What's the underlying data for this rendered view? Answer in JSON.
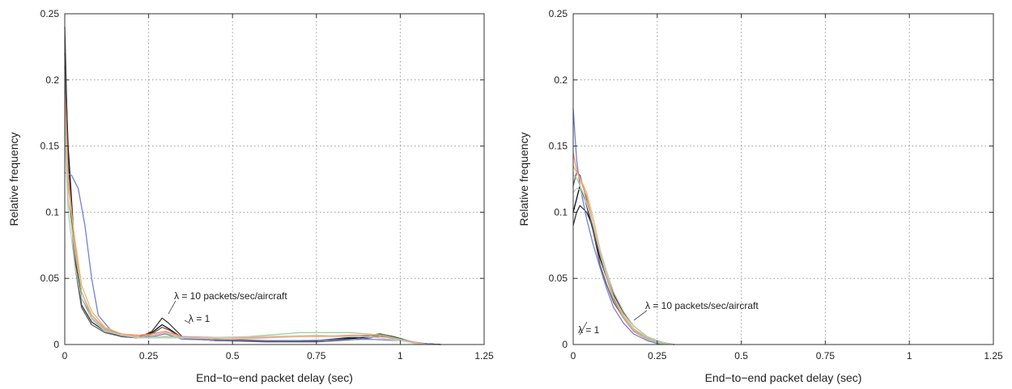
{
  "chart_data": [
    {
      "type": "line",
      "xlabel": "End−to−end packet delay (sec)",
      "ylabel": "Relative frequency",
      "xlim": [
        0,
        1.25
      ],
      "ylim": [
        0,
        0.25
      ],
      "xticks": [
        0,
        0.25,
        0.5,
        0.75,
        1,
        1.25
      ],
      "xtick_labels": [
        "0",
        "0.25",
        "0.5",
        "0.75",
        "1",
        "1.25"
      ],
      "yticks": [
        0,
        0.05,
        0.1,
        0.15,
        0.2,
        0.25
      ],
      "ytick_labels": [
        "0",
        "0.05",
        "0.1",
        "0.15",
        "0.2",
        "0.25"
      ],
      "grid": true,
      "annotations": [
        {
          "text": "λ = 10 packets/sec/aircraft",
          "x": 0.3,
          "y": 0.018
        },
        {
          "text": "λ = 1",
          "x": 0.3,
          "y": 0.012
        }
      ],
      "series": [
        {
          "color": "#0a0a0a",
          "values": [
            [
              0,
              0.22
            ],
            [
              0.01,
              0.15
            ],
            [
              0.03,
              0.07
            ],
            [
              0.05,
              0.035
            ],
            [
              0.08,
              0.02
            ],
            [
              0.12,
              0.011
            ],
            [
              0.17,
              0.007
            ],
            [
              0.22,
              0.006
            ],
            [
              0.26,
              0.009
            ],
            [
              0.29,
              0.015
            ],
            [
              0.31,
              0.012
            ],
            [
              0.35,
              0.005
            ],
            [
              0.45,
              0.003
            ],
            [
              0.6,
              0.0025
            ],
            [
              0.75,
              0.003
            ],
            [
              0.88,
              0.005
            ],
            [
              0.94,
              0.007
            ],
            [
              0.98,
              0.005
            ],
            [
              1.05,
              0.001
            ],
            [
              1.12,
              0
            ]
          ]
        },
        {
          "color": "#3a3a3a",
          "values": [
            [
              0,
              0.24
            ],
            [
              0.01,
              0.14
            ],
            [
              0.03,
              0.065
            ],
            [
              0.05,
              0.03
            ],
            [
              0.08,
              0.017
            ],
            [
              0.12,
              0.01
            ],
            [
              0.17,
              0.006
            ],
            [
              0.22,
              0.005
            ],
            [
              0.26,
              0.01
            ],
            [
              0.29,
              0.02
            ],
            [
              0.31,
              0.016
            ],
            [
              0.35,
              0.006
            ],
            [
              0.45,
              0.004
            ],
            [
              0.6,
              0.003
            ],
            [
              0.75,
              0.003
            ],
            [
              0.88,
              0.006
            ],
            [
              0.94,
              0.008
            ],
            [
              0.98,
              0.006
            ],
            [
              1.05,
              0.001
            ],
            [
              1.12,
              0
            ]
          ]
        },
        {
          "color": "#5c5c5c",
          "values": [
            [
              0,
              0.21
            ],
            [
              0.01,
              0.13
            ],
            [
              0.03,
              0.06
            ],
            [
              0.05,
              0.028
            ],
            [
              0.08,
              0.015
            ],
            [
              0.12,
              0.009
            ],
            [
              0.17,
              0.006
            ],
            [
              0.22,
              0.005
            ],
            [
              0.26,
              0.008
            ],
            [
              0.29,
              0.013
            ],
            [
              0.31,
              0.011
            ],
            [
              0.35,
              0.005
            ],
            [
              0.45,
              0.003
            ],
            [
              0.6,
              0.002
            ],
            [
              0.75,
              0.002
            ],
            [
              0.88,
              0.004
            ],
            [
              0.94,
              0.006
            ],
            [
              0.98,
              0.005
            ],
            [
              1.05,
              0.001
            ],
            [
              1.12,
              0
            ]
          ]
        },
        {
          "color": "#6f7fe0",
          "values": [
            [
              0,
              0.13
            ],
            [
              0.02,
              0.128
            ],
            [
              0.04,
              0.118
            ],
            [
              0.06,
              0.09
            ],
            [
              0.08,
              0.05
            ],
            [
              0.1,
              0.022
            ],
            [
              0.14,
              0.01
            ],
            [
              0.2,
              0.006
            ],
            [
              0.26,
              0.006
            ],
            [
              0.3,
              0.008
            ],
            [
              0.35,
              0.004
            ],
            [
              0.5,
              0.003
            ],
            [
              0.7,
              0.003
            ],
            [
              0.9,
              0.004
            ],
            [
              1.0,
              0.003
            ],
            [
              1.1,
              0
            ]
          ]
        },
        {
          "color": "#f08a7a",
          "values": [
            [
              0,
              0.19
            ],
            [
              0.01,
              0.13
            ],
            [
              0.03,
              0.075
            ],
            [
              0.05,
              0.04
            ],
            [
              0.08,
              0.022
            ],
            [
              0.12,
              0.012
            ],
            [
              0.17,
              0.008
            ],
            [
              0.22,
              0.007
            ],
            [
              0.26,
              0.008
            ],
            [
              0.3,
              0.01
            ],
            [
              0.35,
              0.006
            ],
            [
              0.5,
              0.005
            ],
            [
              0.7,
              0.006
            ],
            [
              0.85,
              0.007
            ],
            [
              0.95,
              0.007
            ],
            [
              1.0,
              0.004
            ],
            [
              1.08,
              0
            ]
          ]
        },
        {
          "color": "#f6b36a",
          "values": [
            [
              0,
              0.18
            ],
            [
              0.01,
              0.12
            ],
            [
              0.03,
              0.08
            ],
            [
              0.05,
              0.045
            ],
            [
              0.08,
              0.025
            ],
            [
              0.12,
              0.013
            ],
            [
              0.17,
              0.008
            ],
            [
              0.22,
              0.006
            ],
            [
              0.26,
              0.007
            ],
            [
              0.3,
              0.009
            ],
            [
              0.35,
              0.005
            ],
            [
              0.5,
              0.004
            ],
            [
              0.7,
              0.006
            ],
            [
              0.85,
              0.006
            ],
            [
              0.95,
              0.006
            ],
            [
              1.0,
              0.003
            ],
            [
              1.08,
              0
            ]
          ]
        },
        {
          "color": "#9fd39a",
          "values": [
            [
              0,
              0.17
            ],
            [
              0.01,
              0.11
            ],
            [
              0.03,
              0.07
            ],
            [
              0.05,
              0.04
            ],
            [
              0.08,
              0.02
            ],
            [
              0.12,
              0.011
            ],
            [
              0.17,
              0.007
            ],
            [
              0.22,
              0.005
            ],
            [
              0.3,
              0.006
            ],
            [
              0.4,
              0.005
            ],
            [
              0.55,
              0.006
            ],
            [
              0.7,
              0.009
            ],
            [
              0.85,
              0.009
            ],
            [
              0.95,
              0.007
            ],
            [
              1.0,
              0.004
            ],
            [
              1.06,
              0
            ]
          ]
        },
        {
          "color": "#c8c8c8",
          "values": [
            [
              0,
              0.16
            ],
            [
              0.01,
              0.1
            ],
            [
              0.03,
              0.06
            ],
            [
              0.05,
              0.035
            ],
            [
              0.08,
              0.019
            ],
            [
              0.12,
              0.01
            ],
            [
              0.17,
              0.007
            ],
            [
              0.22,
              0.005
            ],
            [
              0.3,
              0.005
            ],
            [
              0.45,
              0.005
            ],
            [
              0.6,
              0.006
            ],
            [
              0.75,
              0.007
            ],
            [
              0.9,
              0.006
            ],
            [
              1.0,
              0.003
            ],
            [
              1.06,
              0
            ]
          ]
        }
      ]
    },
    {
      "type": "line",
      "xlabel": "End−to−end packet delay (sec)",
      "ylabel": "Relative frequency",
      "xlim": [
        0,
        1.25
      ],
      "ylim": [
        0,
        0.25
      ],
      "xticks": [
        0,
        0.25,
        0.5,
        0.75,
        1,
        1.25
      ],
      "xtick_labels": [
        "0",
        "0.25",
        "0.5",
        "0.75",
        "1",
        "1.25"
      ],
      "yticks": [
        0,
        0.05,
        0.1,
        0.15,
        0.2,
        0.25
      ],
      "ytick_labels": [
        "0",
        "0.05",
        "0.1",
        "0.15",
        "0.2",
        "0.25"
      ],
      "grid": true,
      "annotations": [
        {
          "text": "λ = 10 packets/sec/aircraft",
          "x": 0.2,
          "y": 0.03
        },
        {
          "text": "λ = 1",
          "x": 0.07,
          "y": 0.01
        }
      ],
      "series": [
        {
          "color": "#0a0a0a",
          "values": [
            [
              0,
              0.1
            ],
            [
              0.01,
              0.11
            ],
            [
              0.02,
              0.12
            ],
            [
              0.04,
              0.105
            ],
            [
              0.06,
              0.085
            ],
            [
              0.08,
              0.065
            ],
            [
              0.1,
              0.05
            ],
            [
              0.12,
              0.035
            ],
            [
              0.15,
              0.02
            ],
            [
              0.18,
              0.01
            ],
            [
              0.22,
              0.004
            ],
            [
              0.26,
              0.001
            ],
            [
              0.3,
              0
            ]
          ]
        },
        {
          "color": "#333333",
          "values": [
            [
              0,
              0.09
            ],
            [
              0.01,
              0.1
            ],
            [
              0.02,
              0.105
            ],
            [
              0.04,
              0.1
            ],
            [
              0.06,
              0.088
            ],
            [
              0.08,
              0.07
            ],
            [
              0.1,
              0.052
            ],
            [
              0.12,
              0.038
            ],
            [
              0.15,
              0.024
            ],
            [
              0.18,
              0.014
            ],
            [
              0.22,
              0.006
            ],
            [
              0.26,
              0.002
            ],
            [
              0.3,
              0
            ]
          ]
        },
        {
          "color": "#555555",
          "values": [
            [
              0,
              0.12
            ],
            [
              0.01,
              0.13
            ],
            [
              0.02,
              0.128
            ],
            [
              0.04,
              0.11
            ],
            [
              0.06,
              0.085
            ],
            [
              0.08,
              0.06
            ],
            [
              0.1,
              0.045
            ],
            [
              0.12,
              0.032
            ],
            [
              0.15,
              0.02
            ],
            [
              0.18,
              0.011
            ],
            [
              0.22,
              0.005
            ],
            [
              0.26,
              0.001
            ],
            [
              0.3,
              0
            ]
          ]
        },
        {
          "color": "#6f7fe0",
          "values": [
            [
              0,
              0.178
            ],
            [
              0.01,
              0.14
            ],
            [
              0.02,
              0.12
            ],
            [
              0.04,
              0.095
            ],
            [
              0.06,
              0.075
            ],
            [
              0.08,
              0.058
            ],
            [
              0.1,
              0.042
            ],
            [
              0.12,
              0.028
            ],
            [
              0.15,
              0.016
            ],
            [
              0.18,
              0.008
            ],
            [
              0.22,
              0.003
            ],
            [
              0.26,
              0
            ]
          ]
        },
        {
          "color": "#f08a7a",
          "values": [
            [
              0,
              0.145
            ],
            [
              0.01,
              0.132
            ],
            [
              0.02,
              0.125
            ],
            [
              0.04,
              0.112
            ],
            [
              0.06,
              0.09
            ],
            [
              0.08,
              0.068
            ],
            [
              0.1,
              0.05
            ],
            [
              0.12,
              0.034
            ],
            [
              0.15,
              0.02
            ],
            [
              0.18,
              0.01
            ],
            [
              0.22,
              0.004
            ],
            [
              0.26,
              0.001
            ],
            [
              0.3,
              0
            ]
          ]
        },
        {
          "color": "#f6b36a",
          "values": [
            [
              0,
              0.135
            ],
            [
              0.01,
              0.13
            ],
            [
              0.02,
              0.126
            ],
            [
              0.04,
              0.115
            ],
            [
              0.06,
              0.095
            ],
            [
              0.08,
              0.072
            ],
            [
              0.1,
              0.053
            ],
            [
              0.12,
              0.036
            ],
            [
              0.15,
              0.021
            ],
            [
              0.18,
              0.011
            ],
            [
              0.22,
              0.004
            ],
            [
              0.26,
              0.001
            ],
            [
              0.3,
              0
            ]
          ]
        },
        {
          "color": "#9fd39a",
          "values": [
            [
              0,
              0.128
            ],
            [
              0.01,
              0.126
            ],
            [
              0.02,
              0.12
            ],
            [
              0.04,
              0.108
            ],
            [
              0.06,
              0.09
            ],
            [
              0.08,
              0.07
            ],
            [
              0.1,
              0.052
            ],
            [
              0.12,
              0.036
            ],
            [
              0.15,
              0.022
            ],
            [
              0.18,
              0.012
            ],
            [
              0.22,
              0.005
            ],
            [
              0.26,
              0.001
            ],
            [
              0.3,
              0
            ]
          ]
        },
        {
          "color": "#c8c8c8",
          "values": [
            [
              0,
              0.115
            ],
            [
              0.01,
              0.118
            ],
            [
              0.02,
              0.117
            ],
            [
              0.04,
              0.106
            ],
            [
              0.06,
              0.09
            ],
            [
              0.08,
              0.072
            ],
            [
              0.1,
              0.055
            ],
            [
              0.12,
              0.04
            ],
            [
              0.15,
              0.025
            ],
            [
              0.18,
              0.014
            ],
            [
              0.22,
              0.006
            ],
            [
              0.26,
              0.002
            ],
            [
              0.3,
              0
            ]
          ]
        }
      ]
    }
  ]
}
